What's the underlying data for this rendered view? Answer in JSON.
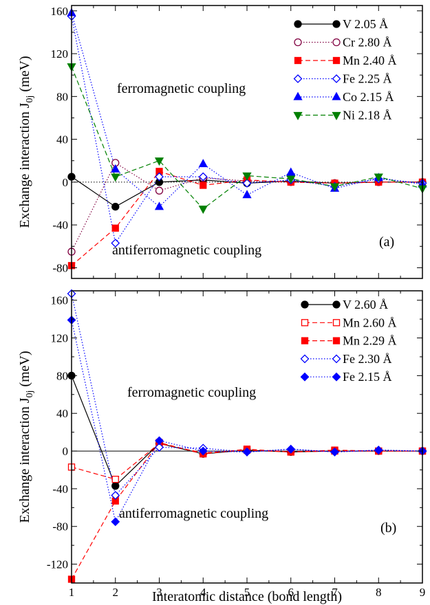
{
  "chart_data": [
    {
      "panel": "a",
      "type": "line",
      "panel_label": "(a)",
      "xlabel": "",
      "ylabel_main": "Exchange interaction J",
      "ylabel_sub": "0j",
      "ylabel_unit": " (meV)",
      "xlim": [
        1,
        9
      ],
      "ylim": [
        -90,
        165
      ],
      "xticks": [
        1,
        2,
        3,
        4,
        5,
        6,
        7,
        8,
        9
      ],
      "yticks": [
        160,
        120,
        80,
        40,
        0,
        -40,
        -80
      ],
      "ytick_labels": [
        "160",
        "120",
        "80",
        "40",
        "0",
        "-40",
        "-80"
      ],
      "annotations": [
        "ferromagnetic coupling",
        "antiferromagnetic coupling"
      ],
      "legend_position": "top-right",
      "dotted_zero_line": true,
      "series": [
        {
          "name": "V 2.05 Å",
          "color": "#000000",
          "marker": "circle",
          "filled": true,
          "dash": "solid",
          "x": [
            1,
            2,
            3,
            4,
            5,
            6,
            7,
            8,
            9
          ],
          "y": [
            5,
            -23,
            0,
            2,
            -1,
            1,
            -1,
            0,
            0
          ]
        },
        {
          "name": "Cr 2.80 Å",
          "color": "#800040",
          "marker": "circle",
          "filled": false,
          "dash": "dotted",
          "x": [
            1,
            2,
            3,
            4,
            5,
            6,
            7,
            8,
            9
          ],
          "y": [
            -65,
            18,
            -8,
            4,
            1,
            0,
            -1,
            0,
            0
          ]
        },
        {
          "name": "Mn 2.40 Å",
          "color": "#ff0000",
          "marker": "square",
          "filled": true,
          "dash": "dashed",
          "x": [
            1,
            2,
            3,
            4,
            5,
            6,
            7,
            8,
            9
          ],
          "y": [
            -78,
            -43,
            10,
            -3,
            2,
            0,
            -1,
            0,
            0
          ]
        },
        {
          "name": "Fe 2.25 Å",
          "color": "#0000ff",
          "marker": "diamond",
          "filled": false,
          "dash": "dotted",
          "x": [
            1,
            2,
            3,
            4,
            5,
            6,
            7,
            8,
            9
          ],
          "y": [
            155,
            -57,
            5,
            5,
            -1,
            2,
            -4,
            3,
            -1
          ]
        },
        {
          "name": "Co 2.15 Å",
          "color": "#0000ff",
          "marker": "triangle-up",
          "filled": true,
          "dash": "dotted",
          "x": [
            1,
            2,
            3,
            4,
            5,
            6,
            7,
            8,
            9
          ],
          "y": [
            158,
            12,
            -23,
            17,
            -12,
            9,
            -6,
            4,
            -2
          ]
        },
        {
          "name": "Ni 2.18 Å",
          "color": "#008000",
          "marker": "triangle-down",
          "filled": true,
          "dash": "dashed",
          "x": [
            1,
            2,
            3,
            4,
            5,
            6,
            7,
            8,
            9
          ],
          "y": [
            108,
            5,
            20,
            -25,
            6,
            3,
            -4,
            5,
            -6
          ]
        }
      ]
    },
    {
      "panel": "b",
      "type": "line",
      "panel_label": "(b)",
      "xlabel": "Interatomic distance  (bond length)",
      "ylabel_main": "Exchange interaction J",
      "ylabel_sub": "0j",
      "ylabel_unit": " (meV)",
      "xlim": [
        1,
        9
      ],
      "ylim": [
        -140,
        170
      ],
      "xticks": [
        1,
        2,
        3,
        4,
        5,
        6,
        7,
        8,
        9
      ],
      "yticks": [
        160,
        120,
        80,
        40,
        0,
        -40,
        -80,
        -120
      ],
      "ytick_labels": [
        "160",
        "120",
        "80",
        "40",
        "0",
        "-40",
        "-80",
        "-120"
      ],
      "annotations": [
        "ferromagnetic coupling",
        "antiferromagnetic coupling"
      ],
      "legend_position": "top-right",
      "dotted_zero_line": false,
      "series": [
        {
          "name": "V 2.60 Å",
          "color": "#000000",
          "marker": "circle",
          "filled": true,
          "dash": "solid",
          "x": [
            1,
            2,
            3,
            4,
            5,
            6,
            7,
            8,
            9
          ],
          "y": [
            80,
            -37,
            8,
            -3,
            1,
            -1,
            0,
            0,
            0
          ]
        },
        {
          "name": "Mn 2.60 Å",
          "color": "#ff0000",
          "marker": "square",
          "filled": false,
          "dash": "dashed",
          "x": [
            1,
            2,
            3,
            4,
            5,
            6,
            7,
            8,
            9
          ],
          "y": [
            -17,
            -30,
            8,
            -2,
            1,
            -1,
            0,
            0,
            0
          ]
        },
        {
          "name": "Mn 2.29 Å",
          "color": "#ff0000",
          "marker": "square",
          "filled": true,
          "dash": "dashed",
          "x": [
            1,
            2,
            3,
            4,
            5,
            6,
            7,
            8,
            9
          ],
          "y": [
            -136,
            -53,
            9,
            -3,
            2,
            -1,
            1,
            0,
            0
          ]
        },
        {
          "name": "Fe 2.30 Å",
          "color": "#0000ff",
          "marker": "diamond",
          "filled": false,
          "dash": "dotted",
          "x": [
            1,
            2,
            3,
            4,
            5,
            6,
            7,
            8,
            9
          ],
          "y": [
            167,
            -47,
            4,
            3,
            -1,
            2,
            -1,
            1,
            0
          ]
        },
        {
          "name": "Fe 2.15 Å",
          "color": "#0000ff",
          "marker": "diamond",
          "filled": true,
          "dash": "dotted",
          "x": [
            1,
            2,
            3,
            4,
            5,
            6,
            7,
            8,
            9
          ],
          "y": [
            139,
            -75,
            11,
            0,
            -1,
            2,
            -1,
            1,
            0
          ]
        }
      ]
    }
  ]
}
